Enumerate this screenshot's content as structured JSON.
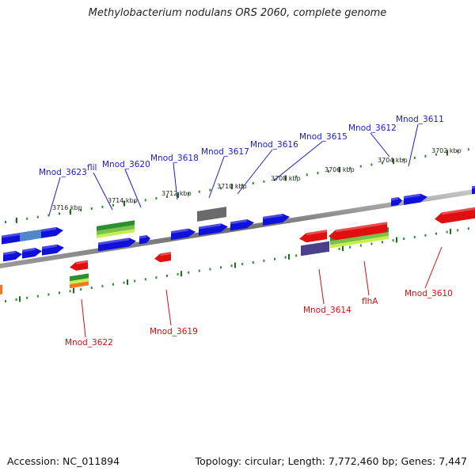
{
  "title": "Methylobacterium nodulans ORS 2060, complete genome",
  "footer": {
    "accession": "Accession: NC_011894",
    "topology": "Topology: circular; Length: 7,772,460 bp; Genes: 7,447"
  },
  "colors": {
    "backbone": "#7a7a7a",
    "tick": "#2e8b2e",
    "forward_gene": "#1010dd",
    "reverse_gene": "#e01010",
    "forward_label": "#1a1acc",
    "reverse_label": "#cc1111"
  },
  "scale_labels": [
    "3716 kbp",
    "3714 kbp",
    "3712 kbp",
    "3710 kbp",
    "3708 kbp",
    "3706 kbp",
    "3704 kbp",
    "3702 kbp"
  ],
  "forward_genes": [
    "Mnod_3623",
    "flil",
    "Mnod_3620",
    "Mnod_3618",
    "Mnod_3617",
    "Mnod_3616",
    "Mnod_3615",
    "Mnod_3612",
    "Mnod_3611"
  ],
  "reverse_genes": [
    "Mnod_3622",
    "Mnod_3619",
    "Mnod_3614",
    "flhA",
    "Mnod_3610"
  ]
}
